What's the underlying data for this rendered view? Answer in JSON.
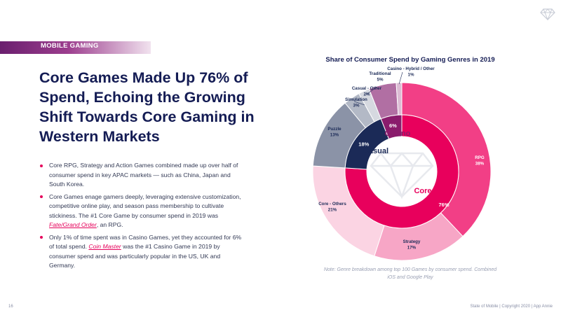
{
  "section": {
    "label": "MOBILE GAMING"
  },
  "headline": "Core Games Made Up 76% of Spend, Echoing the Growing Shift Towards Core Gaming in Western Markets",
  "bullets": [
    {
      "pre": "Core RPG, Strategy and Action Games combined made up over half of consumer spend in key APAC markets — such as China, Japan and South Korea.",
      "link": "",
      "post": ""
    },
    {
      "pre": "Core Games enage gamers deeply, leveraging extensive customization, competitive online play, and season pass membership to cultivate stickiness. The #1 Core Game by consumer spend in 2019 was ",
      "link": "Fate/Grand Order",
      "post": ", an RPG."
    },
    {
      "pre": "Only 1% of time spent was in Casino Games, yet they accounted for 6% of total spend. ",
      "link": "Coin Master",
      "post": " was the #1 Casino Game in 2019 by consumer spend and was particularly popular in the US, UK and Germany."
    }
  ],
  "chart_data": {
    "type": "pie",
    "subtype": "nested-donut",
    "title": "Share of Consumer Spend by Gaming Genres in 2019",
    "inner": [
      {
        "name": "Core",
        "value": 76,
        "label": "76%",
        "color": "#e8005c"
      },
      {
        "name": "Casual",
        "value": 18,
        "label": "18%",
        "color": "#1b2a57"
      },
      {
        "name": "Casino",
        "value": 6,
        "label": "6%",
        "color": "#8a1c6c"
      }
    ],
    "outer": [
      {
        "name": "RPG",
        "value": 38,
        "label": "38%",
        "color": "#f23f86"
      },
      {
        "name": "Strategy",
        "value": 17,
        "label": "17%",
        "color": "#f7a6c6"
      },
      {
        "name": "Core - Others",
        "value": 21,
        "label": "21%",
        "color": "#fbd4e3"
      },
      {
        "name": "Puzzle",
        "value": 13,
        "label": "13%",
        "color": "#8b93a7"
      },
      {
        "name": "Simulation",
        "value": 3,
        "label": "3%",
        "color": "#b3b9c6"
      },
      {
        "name": "Casual - Other",
        "value": 2,
        "label": "2%",
        "color": "#d6d9e0"
      },
      {
        "name": "Traditional",
        "value": 5,
        "label": "5%",
        "color": "#b16fa3"
      },
      {
        "name": "Casino - Hybrid / Other",
        "value": 1,
        "label": "1%",
        "color": "#dcbcd4"
      }
    ],
    "note": "Note: Genre breakdown among top 100 Games by consumer spend. Combined iOS and Google Play"
  },
  "footer": {
    "text": "State of Mobile  |  Copyright 2020  |  App Annie",
    "page": "16"
  },
  "colors": {
    "accent": "#e5005a",
    "navy": "#141c54",
    "purple": "#6a1f6e"
  }
}
